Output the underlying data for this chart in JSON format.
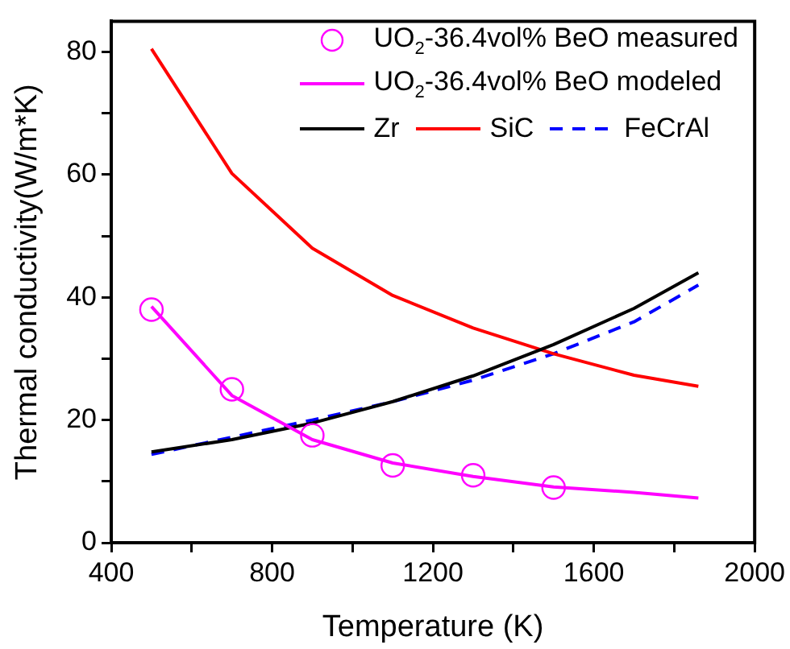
{
  "chart_data": {
    "type": "line",
    "xlabel": "Temperature (K)",
    "ylabel": "Thermal conductivity(W/m*K)",
    "x": [
      500,
      700,
      900,
      1100,
      1300,
      1500,
      1700,
      1860
    ],
    "xlim": [
      400,
      2000
    ],
    "ylim": [
      0,
      85
    ],
    "xticks": [
      400,
      {
        "value": 600,
        "label": null
      },
      800,
      {
        "value": 1000,
        "label": null
      },
      1200,
      {
        "value": 1400,
        "label": null
      },
      1600,
      {
        "value": 1800,
        "label": null
      },
      2000
    ],
    "yticks": [
      0,
      {
        "value": 10,
        "label": null
      },
      20,
      {
        "value": 30,
        "label": null
      },
      40,
      {
        "value": 50,
        "label": null
      },
      60,
      {
        "value": 70,
        "label": null
      },
      80
    ],
    "grid": false,
    "legend": "top right",
    "marker": "none",
    "line_style": "solid",
    "series": [
      {
        "name": "UO$_{2}$-36.4vol% BeO measured",
        "type": "scatter",
        "marker": "circle",
        "color": "#ff00ff",
        "x": [
          500,
          700,
          900,
          1100,
          1300,
          1500
        ],
        "values": [
          38,
          25,
          17.5,
          12.6,
          11,
          9
        ]
      },
      {
        "name": "UO$_{2}$-36.4vol% BeO modeled",
        "color": "#ff00ff",
        "values": [
          38.5,
          24,
          16.8,
          13,
          10.8,
          9.1,
          8.2,
          7.3
        ]
      },
      {
        "name": "Zr",
        "color": "#000000",
        "values": [
          14.8,
          16.8,
          19.5,
          23,
          27.2,
          32.3,
          38.2,
          44
        ]
      },
      {
        "name": "SiC",
        "color": "#ff0000",
        "values": [
          80.5,
          60.2,
          48,
          40.3,
          35,
          30.8,
          27.3,
          25.5
        ]
      },
      {
        "name": "FeCrAl",
        "color": "#0000ff",
        "line_style": "dashed",
        "values": [
          14.4,
          17.2,
          20,
          23,
          26.5,
          30.8,
          36,
          42
        ]
      }
    ]
  }
}
